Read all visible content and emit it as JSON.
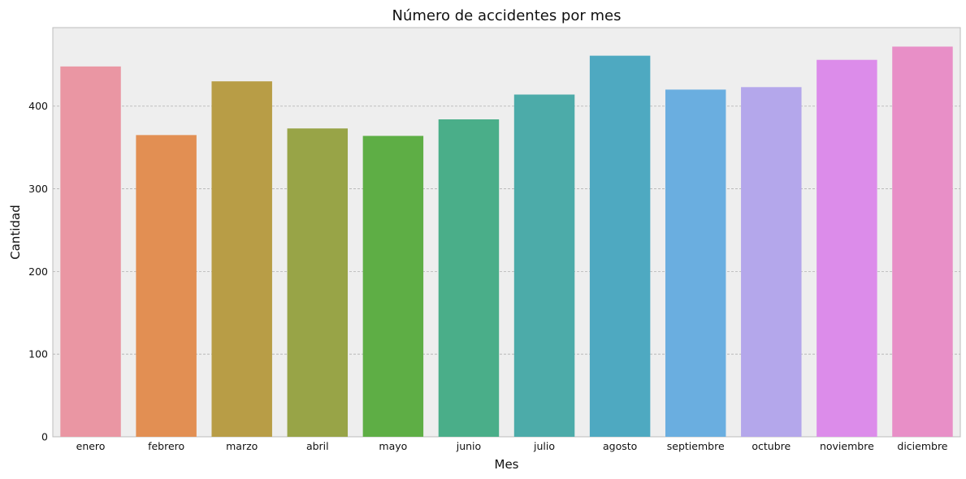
{
  "chart_data": {
    "type": "bar",
    "title": "Número de accidentes por mes",
    "xlabel": "Mes",
    "ylabel": "Cantidad",
    "categories": [
      "enero",
      "febrero",
      "marzo",
      "abril",
      "mayo",
      "junio",
      "julio",
      "agosto",
      "septiembre",
      "octubre",
      "noviembre",
      "diciembre"
    ],
    "values": [
      448,
      365,
      430,
      373,
      364,
      384,
      414,
      461,
      420,
      423,
      456,
      472
    ],
    "colors": [
      "#ea96a3",
      "#e28f53",
      "#b89d46",
      "#98a447",
      "#5eae45",
      "#4aae89",
      "#4caba9",
      "#4ea9c1",
      "#6aaee0",
      "#b4a7eb",
      "#dc8cea",
      "#e88fc7"
    ],
    "ylim": [
      0,
      495
    ],
    "yticks": [
      0,
      100,
      200,
      300,
      400
    ],
    "grid": true,
    "background": "#eeeeee",
    "legend": "none"
  }
}
